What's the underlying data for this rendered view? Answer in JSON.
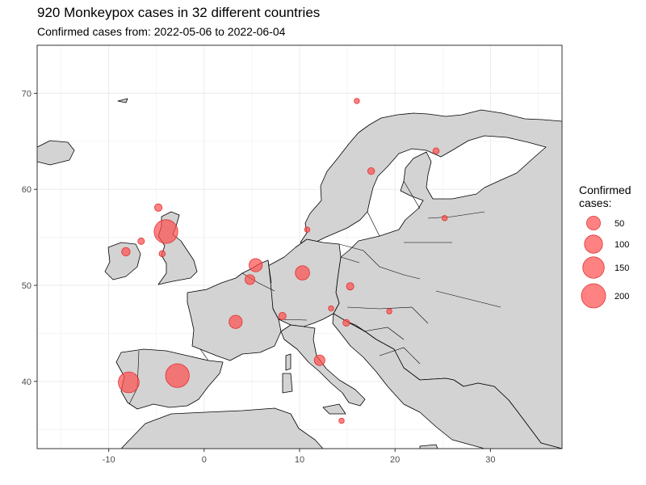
{
  "header": {
    "title": "920 Monkeypox cases in 32 different countries",
    "subtitle": "Confirmed cases from: 2022-05-06 to 2022-06-04"
  },
  "map": {
    "x_range": [
      -17.5,
      37.5
    ],
    "y_range": [
      33,
      75
    ],
    "x_ticks": [
      -10,
      0,
      10,
      20,
      30
    ],
    "y_ticks": [
      40,
      50,
      60,
      70
    ],
    "colors": {
      "land": "#d3d3d3",
      "border": "#000000",
      "bubble": "#ff4d4d",
      "grid": "#ebebeb"
    }
  },
  "legend": {
    "title_line1": "Confirmed",
    "title_line2": "cases:",
    "entries": [
      {
        "value": 50,
        "label": "50"
      },
      {
        "value": 100,
        "label": "100"
      },
      {
        "value": 150,
        "label": "150"
      },
      {
        "value": 200,
        "label": "200"
      }
    ]
  },
  "cases": [
    {
      "lon": -4.0,
      "lat": 55.6,
      "value": 190
    },
    {
      "lon": -2.8,
      "lat": 40.6,
      "value": 190
    },
    {
      "lon": -7.9,
      "lat": 39.9,
      "value": 140
    },
    {
      "lon": 10.3,
      "lat": 51.3,
      "value": 55
    },
    {
      "lon": 3.3,
      "lat": 46.2,
      "value": 45
    },
    {
      "lon": 5.4,
      "lat": 52.1,
      "value": 45
    },
    {
      "lon": 4.8,
      "lat": 50.6,
      "value": 20
    },
    {
      "lon": 12.1,
      "lat": 42.2,
      "value": 25
    },
    {
      "lon": -8.2,
      "lat": 53.5,
      "value": 12
    },
    {
      "lon": -6.6,
      "lat": 54.6,
      "value": 5
    },
    {
      "lon": -4.8,
      "lat": 58.1,
      "value": 8
    },
    {
      "lon": -4.4,
      "lat": 53.3,
      "value": 4
    },
    {
      "lon": 8.2,
      "lat": 46.8,
      "value": 8
    },
    {
      "lon": 15.3,
      "lat": 49.9,
      "value": 8
    },
    {
      "lon": 14.9,
      "lat": 46.1,
      "value": 6
    },
    {
      "lon": 17.5,
      "lat": 61.9,
      "value": 6
    },
    {
      "lon": 24.3,
      "lat": 64.0,
      "value": 4
    },
    {
      "lon": 16.0,
      "lat": 69.2,
      "value": 2
    },
    {
      "lon": 13.3,
      "lat": 47.6,
      "value": 2
    },
    {
      "lon": 19.4,
      "lat": 47.3,
      "value": 2
    },
    {
      "lon": 25.2,
      "lat": 57.0,
      "value": 2
    },
    {
      "lon": 10.8,
      "lat": 55.8,
      "value": 2
    },
    {
      "lon": 14.4,
      "lat": 35.9,
      "value": 2
    }
  ]
}
